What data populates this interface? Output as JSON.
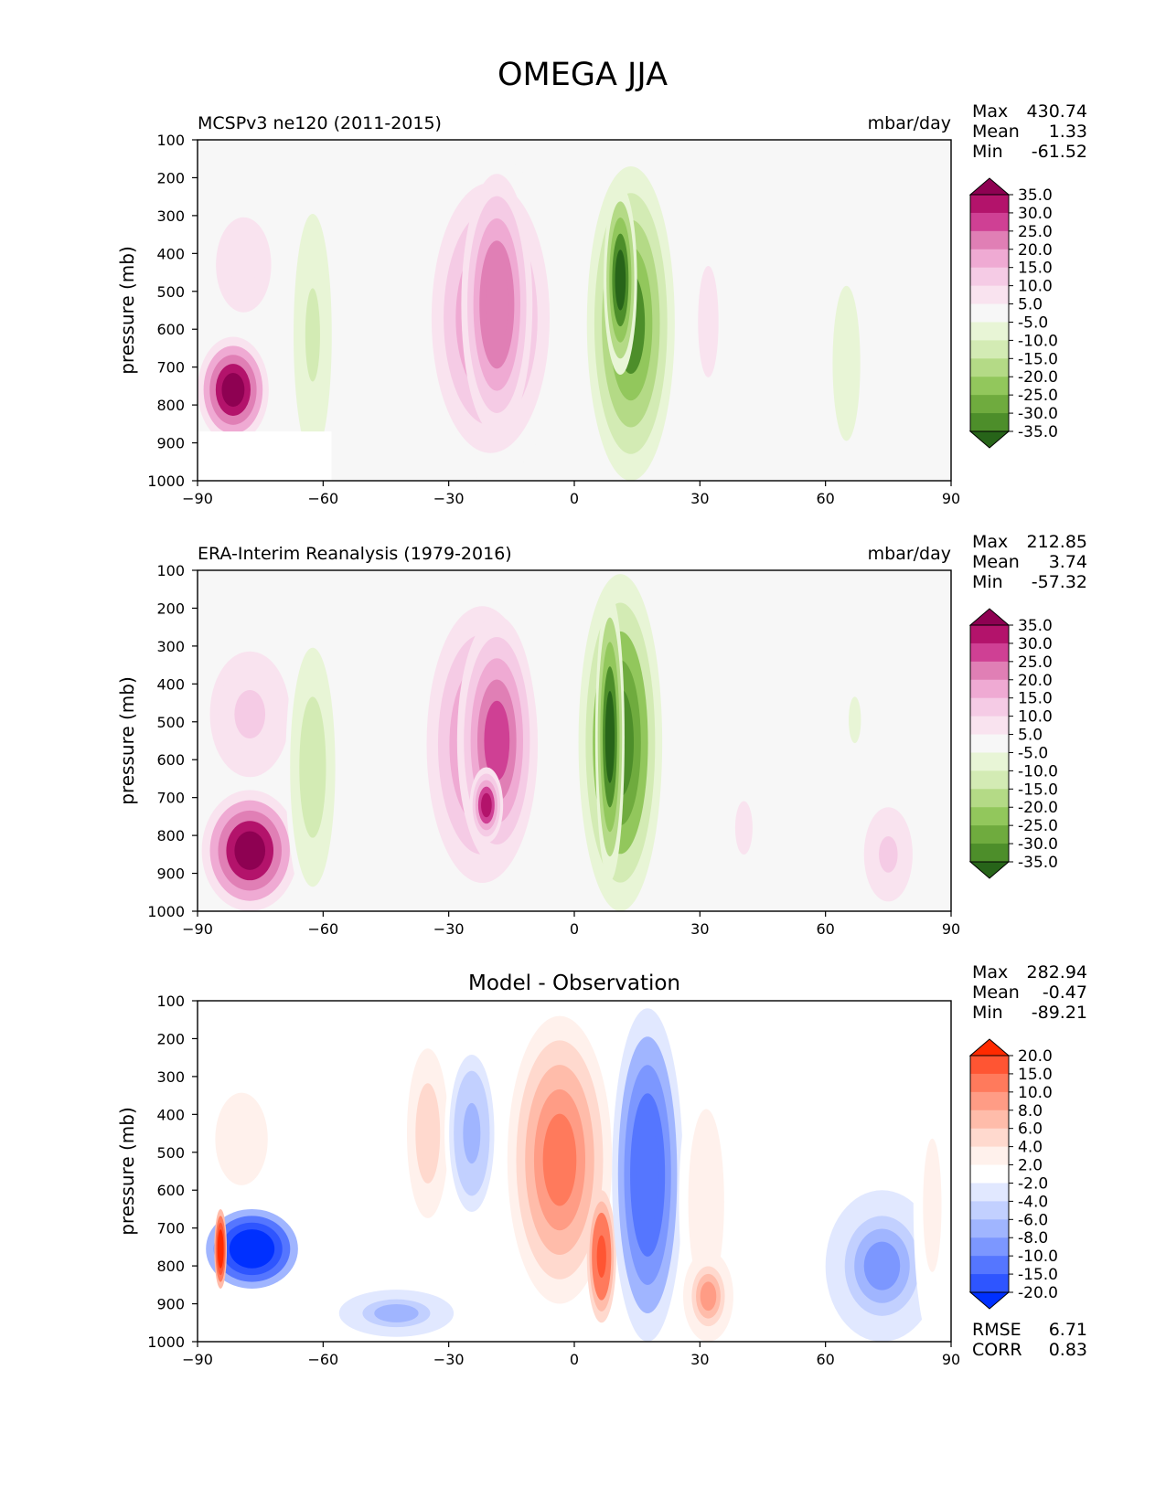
{
  "figure_title": "OMEGA JJA",
  "panels": [
    {
      "title_left": "MCSPv3 ne120 (2011-2015)",
      "title_right": "mbar/day",
      "ylabel": "pressure (mb)",
      "stats": [
        {
          "label": "Max",
          "value": "430.74"
        },
        {
          "label": "Mean",
          "value": "1.33"
        },
        {
          "label": "Min",
          "value": "-61.52"
        }
      ],
      "colorbar": "omega"
    },
    {
      "title_left": "ERA-Interim Reanalysis (1979-2016)",
      "title_right": "mbar/day",
      "ylabel": "pressure (mb)",
      "stats": [
        {
          "label": "Max",
          "value": "212.85"
        },
        {
          "label": "Mean",
          "value": "3.74"
        },
        {
          "label": "Min",
          "value": "-57.32"
        }
      ],
      "colorbar": "omega"
    },
    {
      "title_center": "Model - Observation",
      "ylabel": "pressure (mb)",
      "stats": [
        {
          "label": "Max",
          "value": "282.94"
        },
        {
          "label": "Mean",
          "value": "-0.47"
        },
        {
          "label": "Min",
          "value": "-89.21"
        }
      ],
      "extra_stats": [
        {
          "label": "RMSE",
          "value": "6.71"
        },
        {
          "label": "CORR",
          "value": "0.83"
        }
      ],
      "colorbar": "diff"
    }
  ],
  "colorbars": {
    "omega": {
      "labels": [
        "35.0",
        "30.0",
        "25.0",
        "20.0",
        "15.0",
        "10.0",
        "5.0",
        "-5.0",
        "-10.0",
        "-15.0",
        "-20.0",
        "-25.0",
        "-30.0",
        "-35.0"
      ],
      "colors": [
        "#8e0152",
        "#b3136b",
        "#cf4094",
        "#e07fb5",
        "#efaad3",
        "#f5cbe5",
        "#f9e3ef",
        "#f7f7f7",
        "#e8f5d6",
        "#d3ebb4",
        "#b4da86",
        "#92c75c",
        "#6fab3e",
        "#4d8e2a",
        "#276419"
      ]
    },
    "diff": {
      "labels": [
        "20.0",
        "15.0",
        "10.0",
        "8.0",
        "6.0",
        "4.0",
        "2.0",
        "-2.0",
        "-4.0",
        "-6.0",
        "-8.0",
        "-10.0",
        "-15.0",
        "-20.0"
      ],
      "colors": [
        "#ff2a00",
        "#ff5533",
        "#ff7a5c",
        "#ff9c85",
        "#ffbcaa",
        "#ffd9ce",
        "#fff1ec",
        "#ffffff",
        "#e1e8ff",
        "#c2d0ff",
        "#a0b5ff",
        "#7c97ff",
        "#5576ff",
        "#2e55ff",
        "#0030ff"
      ]
    }
  },
  "chart_data": [
    {
      "type": "heatmap",
      "title": "MCSPv3 ne120 (2011-2015)",
      "units": "mbar/day",
      "xlabel": "",
      "ylabel": "pressure (mb)",
      "xlim": [
        -90,
        90
      ],
      "ylim": [
        1000,
        100
      ],
      "xticks": [
        "−90",
        "−60",
        "−30",
        "0",
        "30",
        "60",
        "90"
      ],
      "yticks": [
        "100",
        "200",
        "300",
        "400",
        "500",
        "600",
        "700",
        "800",
        "900",
        "1000"
      ],
      "features": [
        {
          "lat": [
            -90,
            -73
          ],
          "p": [
            620,
            900
          ],
          "value": 40
        },
        {
          "lat": [
            -89,
            -69
          ],
          "p": [
            240,
            620
          ],
          "value": 10
        },
        {
          "lat": [
            -68,
            -57
          ],
          "p": [
            230,
            1000
          ],
          "value": -12
        },
        {
          "lat": [
            -37,
            -3
          ],
          "p": [
            140,
            1000
          ],
          "value": 20
        },
        {
          "lat": [
            -27,
            -10
          ],
          "p": [
            190,
            880
          ],
          "value": 25
        },
        {
          "lat": [
            3,
            24
          ],
          "p": [
            170,
            1000
          ],
          "value": -30
        },
        {
          "lat": [
            7,
            15
          ],
          "p": [
            220,
            720
          ],
          "value": -38
        },
        {
          "lat": [
            27,
            37
          ],
          "p": [
            280,
            880
          ],
          "value": 7
        },
        {
          "lat": [
            60,
            70
          ],
          "p": [
            380,
            1000
          ],
          "value": -8
        }
      ],
      "missing_region": {
        "lat": [
          -90,
          -58
        ],
        "p": [
          870,
          1000
        ]
      }
    },
    {
      "type": "heatmap",
      "title": "ERA-Interim Reanalysis (1979-2016)",
      "units": "mbar/day",
      "xlabel": "",
      "ylabel": "pressure (mb)",
      "xlim": [
        -90,
        90
      ],
      "ylim": [
        1000,
        100
      ],
      "xticks": [
        "−90",
        "−60",
        "−30",
        "0",
        "30",
        "60",
        "90"
      ],
      "yticks": [
        "100",
        "200",
        "300",
        "400",
        "500",
        "600",
        "700",
        "800",
        "900",
        "1000"
      ],
      "features": [
        {
          "lat": [
            -89,
            -66
          ],
          "p": [
            680,
            1000
          ],
          "value": 40
        },
        {
          "lat": [
            -89,
            -66
          ],
          "p": [
            280,
            680
          ],
          "value": 12
        },
        {
          "lat": [
            -69,
            -56
          ],
          "p": [
            240,
            1000
          ],
          "value": -13
        },
        {
          "lat": [
            -38,
            -6
          ],
          "p": [
            120,
            1000
          ],
          "value": 20
        },
        {
          "lat": [
            -28,
            -9
          ],
          "p": [
            220,
            880
          ],
          "value": 26
        },
        {
          "lat": [
            -25,
            -17
          ],
          "p": [
            620,
            820
          ],
          "value": 32
        },
        {
          "lat": [
            1,
            21
          ],
          "p": [
            110,
            1000
          ],
          "value": -32
        },
        {
          "lat": [
            5,
            12
          ],
          "p": [
            160,
            920
          ],
          "value": -38
        },
        {
          "lat": [
            34,
            47
          ],
          "p": [
            560,
            1000
          ],
          "value": 6
        },
        {
          "lat": [
            64,
            70
          ],
          "p": [
            370,
            620
          ],
          "value": -7
        },
        {
          "lat": [
            68,
            82
          ],
          "p": [
            700,
            1000
          ],
          "value": 12
        }
      ]
    },
    {
      "type": "heatmap",
      "title": "Model - Observation",
      "xlabel": "",
      "ylabel": "pressure (mb)",
      "xlim": [
        -90,
        90
      ],
      "ylim": [
        1000,
        100
      ],
      "xticks": [
        "−90",
        "−60",
        "−30",
        "0",
        "30",
        "60",
        "90"
      ],
      "yticks": [
        "100",
        "200",
        "300",
        "400",
        "500",
        "600",
        "700",
        "800",
        "900",
        "1000"
      ],
      "features": [
        {
          "lat": [
            -89,
            -70
          ],
          "p": [
            280,
            650
          ],
          "value": 4
        },
        {
          "lat": [
            -88,
            -66
          ],
          "p": [
            650,
            860
          ],
          "value": -25
        },
        {
          "lat": [
            -86,
            -83
          ],
          "p": [
            650,
            860
          ],
          "value": 25
        },
        {
          "lat": [
            -41,
            -29
          ],
          "p": [
            180,
            720
          ],
          "value": 5
        },
        {
          "lat": [
            -31,
            -18
          ],
          "p": [
            200,
            700
          ],
          "value": -7
        },
        {
          "lat": [
            -59,
            -26
          ],
          "p": [
            850,
            1000
          ],
          "value": -6
        },
        {
          "lat": [
            -16,
            9
          ],
          "p": [
            140,
            900
          ],
          "value": 11
        },
        {
          "lat": [
            3,
            10
          ],
          "p": [
            600,
            950
          ],
          "value": 18
        },
        {
          "lat": [
            9,
            26
          ],
          "p": [
            120,
            1000
          ],
          "value": -14
        },
        {
          "lat": [
            25,
            38
          ],
          "p": [
            260,
            1000
          ],
          "value": 4
        },
        {
          "lat": [
            26,
            38
          ],
          "p": [
            760,
            1000
          ],
          "value": 9
        },
        {
          "lat": [
            60,
            87
          ],
          "p": [
            600,
            1000
          ],
          "value": -9
        },
        {
          "lat": [
            81,
            90
          ],
          "p": [
            280,
            1000
          ],
          "value": 3
        }
      ],
      "missing_region": {
        "lat": [
          -90,
          -58
        ],
        "p": [
          870,
          1000
        ]
      }
    }
  ]
}
